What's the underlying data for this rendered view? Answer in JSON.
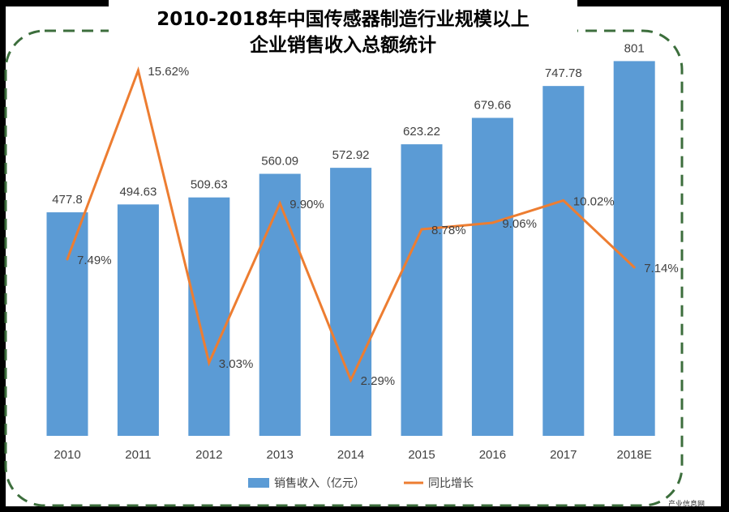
{
  "title_lines": [
    "2010-2018年中国传感器制造行业规模以上",
    "企业销售收入总额统计"
  ],
  "chart_data": {
    "type": "bar",
    "categories": [
      "2010",
      "2011",
      "2012",
      "2013",
      "2014",
      "2015",
      "2016",
      "2017",
      "2018E"
    ],
    "series": [
      {
        "name": "销售收入（亿元）",
        "kind": "bar",
        "color": "#5b9bd5",
        "values": [
          477.8,
          494.63,
          509.63,
          560.09,
          572.92,
          623.22,
          679.66,
          747.78,
          801
        ],
        "labels": [
          "477.8",
          "494.63",
          "509.63",
          "560.09",
          "572.92",
          "623.22",
          "679.66",
          "747.78",
          "801"
        ]
      },
      {
        "name": "同比增长",
        "kind": "line",
        "color": "#ed7d31",
        "values": [
          7.49,
          15.62,
          3.03,
          9.9,
          2.29,
          8.78,
          9.06,
          10.02,
          7.14
        ],
        "labels": [
          "7.49%",
          "15.62%",
          "3.03%",
          "9.90%",
          "2.29%",
          "8.78%",
          "9.06%",
          "10.02%",
          "7.14%"
        ]
      }
    ],
    "title": "2010-2018年中国传感器制造行业规模以上企业销售收入总额统计",
    "legend": "bottom",
    "grid": false,
    "border_color": "#3c6e3c"
  },
  "watermark": "产业信息网"
}
